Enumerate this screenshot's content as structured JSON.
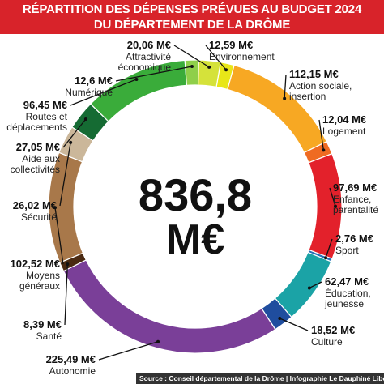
{
  "title_line1": "RÉPARTITION DES DÉPENSES PRÉVUES AU BUDGET 2024",
  "title_line2": "DU DÉPARTEMENT DE LA DRÔME",
  "total_value": "836,8",
  "total_unit": "M€",
  "source": "Source : Conseil départemental de la Drôme | Infographie Le Dauphiné Libéré",
  "chart_data": {
    "type": "pie",
    "title": "RÉPARTITION DES DÉPENSES PRÉVUES AU BUDGET 2024 DU DÉPARTEMENT DE LA DRÔME",
    "unit": "M€",
    "total": 836.8,
    "slices": [
      {
        "value": 12.59,
        "value_label": "12,59 M€",
        "label": [
          "Environnement"
        ],
        "color": "#e8e618"
      },
      {
        "value": 112.15,
        "value_label": "112,15 M€",
        "label": [
          "Action sociale,",
          "insertion"
        ],
        "color": "#f7a823"
      },
      {
        "value": 12.04,
        "value_label": "12,04 M€",
        "label": [
          "Logement"
        ],
        "color": "#ef6b22"
      },
      {
        "value": 97.69,
        "value_label": "97,69 M€",
        "label": [
          "Enfance,",
          "parentalité"
        ],
        "color": "#e3212b"
      },
      {
        "value": 2.76,
        "value_label": "2,76 M€",
        "label": [
          "Sport"
        ],
        "color": "#2a6fb5"
      },
      {
        "value": 62.47,
        "value_label": "62,47 M€",
        "label": [
          "Éducation,",
          "jeunesse"
        ],
        "color": "#1ba3a6"
      },
      {
        "value": 18.52,
        "value_label": "18,52 M€",
        "label": [
          "Culture"
        ],
        "color": "#1f4d9e"
      },
      {
        "value": 225.49,
        "value_label": "225,49 M€",
        "label": [
          "Autonomie"
        ],
        "color": "#7a3f98"
      },
      {
        "value": 8.39,
        "value_label": "8,39 M€",
        "label": [
          "Santé"
        ],
        "color": "#4a2a12"
      },
      {
        "value": 102.52,
        "value_label": "102,52 M€",
        "label": [
          "Moyens",
          "généraux"
        ],
        "color": "#a8784a"
      },
      {
        "value": 26.02,
        "value_label": "26,02 M€",
        "label": [
          "Sécurité"
        ],
        "color": "#cbb79a"
      },
      {
        "value": 27.05,
        "value_label": "27,05 M€",
        "label": [
          "Aide aux",
          "collectivités"
        ],
        "color": "#156b33"
      },
      {
        "value": 96.45,
        "value_label": "96,45 M€",
        "label": [
          "Routes et",
          "déplacements"
        ],
        "color": "#3aac3a"
      },
      {
        "value": 12.6,
        "value_label": "12,6 M€",
        "label": [
          "Numérique"
        ],
        "color": "#8fcf4a"
      },
      {
        "value": 20.06,
        "value_label": "20,06 M€",
        "label": [
          "Attractivité",
          "économique"
        ],
        "color": "#d5e23a"
      }
    ]
  }
}
